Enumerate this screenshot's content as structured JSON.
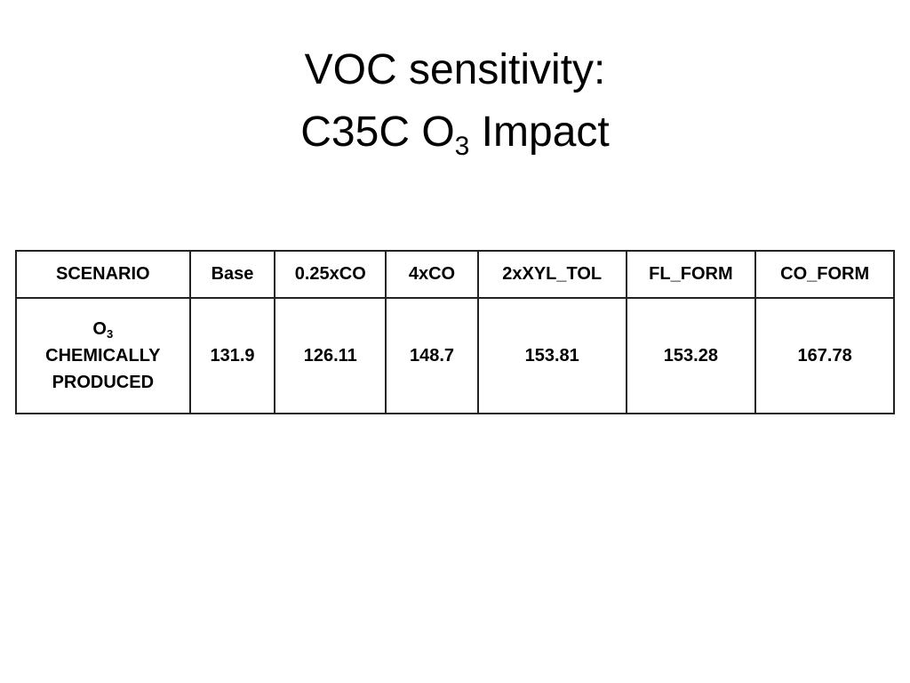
{
  "title": {
    "lines": [
      [
        {
          "text": "VOC sensitivity:"
        }
      ],
      [
        {
          "text": "C35C O"
        },
        {
          "sub": "3"
        },
        {
          "text": " Impact"
        }
      ]
    ]
  },
  "table": {
    "header": [
      "SCENARIO",
      "Base",
      "0.25xCO",
      "4xCO",
      "2xXYL_TOL",
      "FL_FORM",
      "CO_FORM"
    ],
    "rows": [
      {
        "label": [
          [
            {
              "text": "O"
            },
            {
              "sub": "3"
            }
          ],
          [
            {
              "text": "CHEMICALLY"
            }
          ],
          [
            {
              "text": "PRODUCED"
            }
          ]
        ],
        "cells": [
          "131.9",
          "126.11",
          "148.7",
          "153.81",
          "153.28",
          "167.78"
        ]
      }
    ]
  }
}
